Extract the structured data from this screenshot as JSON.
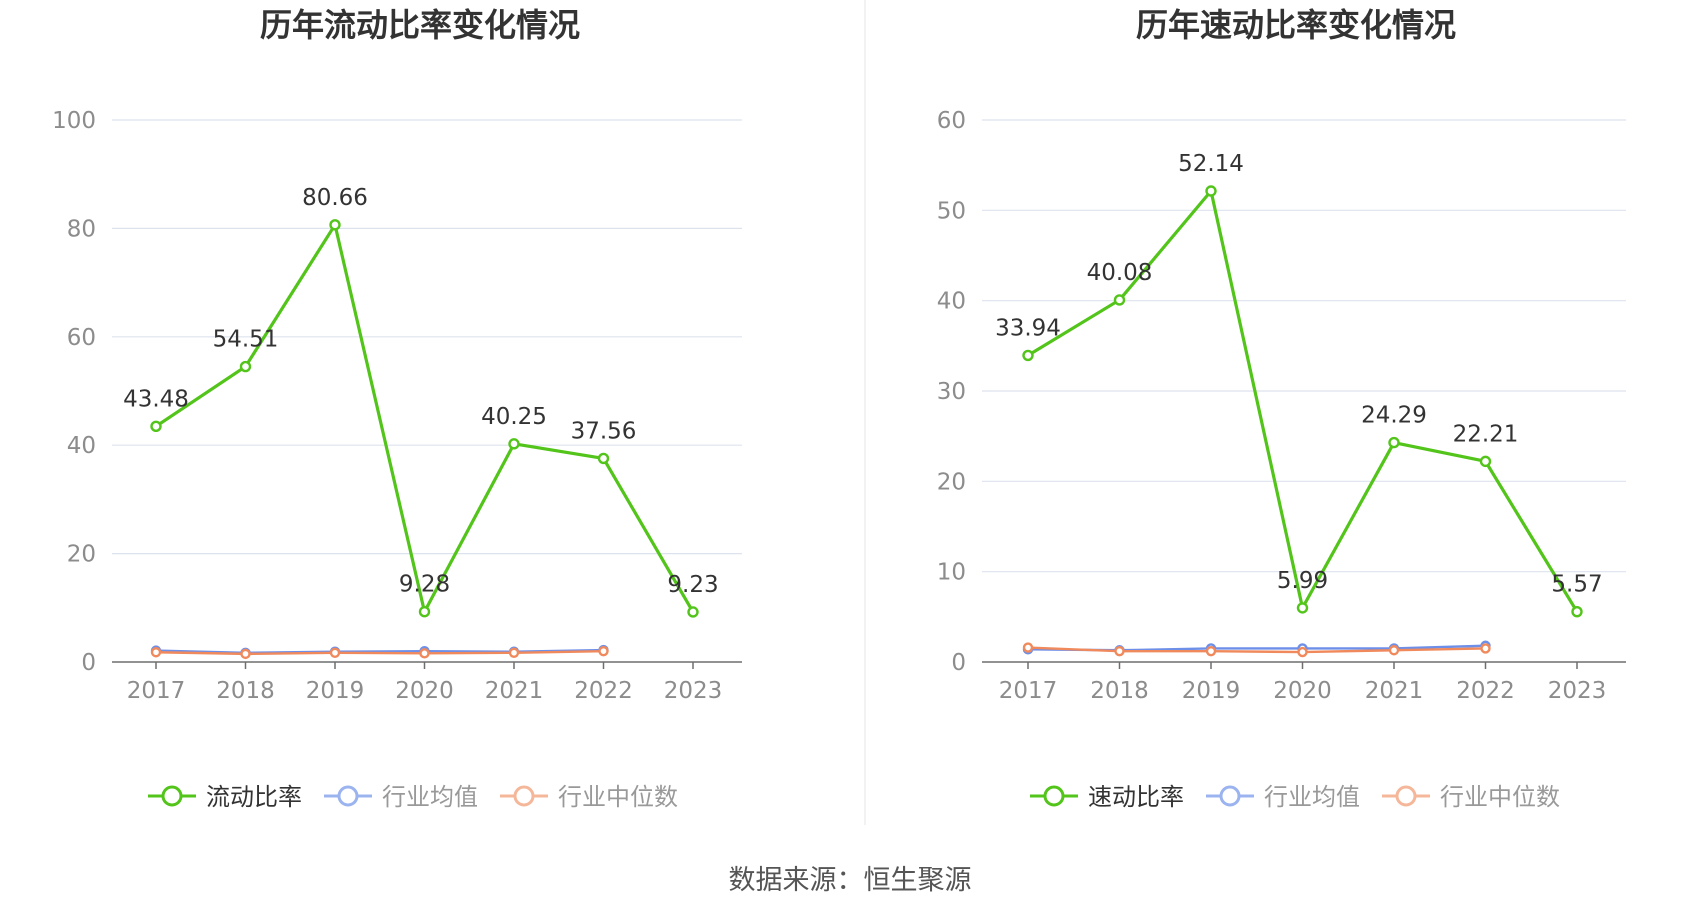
{
  "source_label": "数据来源：恒生聚源",
  "colors": {
    "main": "#52c41a",
    "avg": "#6e8fe8",
    "median": "#f08a5d",
    "avg_legend": "#9bb4f0",
    "median_legend": "#f5b79a",
    "grid": "#dde3ee",
    "axis": "#6e6e6e",
    "tick_text": "#8c8c8c",
    "label_text": "#333333",
    "title_text": "#333333",
    "divider": "#eeeeee"
  },
  "chart_data": [
    {
      "type": "line",
      "title": "历年流动比率变化情况",
      "categories": [
        "2017",
        "2018",
        "2019",
        "2020",
        "2021",
        "2022",
        "2023"
      ],
      "ylim": [
        0,
        100
      ],
      "yticks": [
        0,
        20,
        40,
        60,
        80,
        100
      ],
      "series": [
        {
          "name": "流动比率",
          "values": [
            43.48,
            54.51,
            80.66,
            9.28,
            40.25,
            37.56,
            9.23
          ],
          "labels": [
            "43.48",
            "54.51",
            "80.66",
            "9.28",
            "40.25",
            "37.56",
            "9.23"
          ]
        },
        {
          "name": "行业均值",
          "values": [
            2.1,
            1.7,
            1.9,
            2.0,
            1.9,
            2.2,
            null
          ]
        },
        {
          "name": "行业中位数",
          "values": [
            1.8,
            1.5,
            1.7,
            1.6,
            1.7,
            2.0,
            null
          ]
        }
      ]
    },
    {
      "type": "line",
      "title": "历年速动比率变化情况",
      "categories": [
        "2017",
        "2018",
        "2019",
        "2020",
        "2021",
        "2022",
        "2023"
      ],
      "ylim": [
        0,
        60
      ],
      "yticks": [
        0,
        10,
        20,
        30,
        40,
        50,
        60
      ],
      "series": [
        {
          "name": "速动比率",
          "values": [
            33.94,
            40.08,
            52.14,
            5.99,
            24.29,
            22.21,
            5.57
          ],
          "labels": [
            "33.94",
            "40.08",
            "52.14",
            "5.99",
            "24.29",
            "22.21",
            "5.57"
          ]
        },
        {
          "name": "行业均值",
          "values": [
            1.4,
            1.3,
            1.5,
            1.5,
            1.5,
            1.8,
            null
          ]
        },
        {
          "name": "行业中位数",
          "values": [
            1.6,
            1.2,
            1.2,
            1.1,
            1.3,
            1.5,
            null
          ]
        }
      ]
    }
  ]
}
